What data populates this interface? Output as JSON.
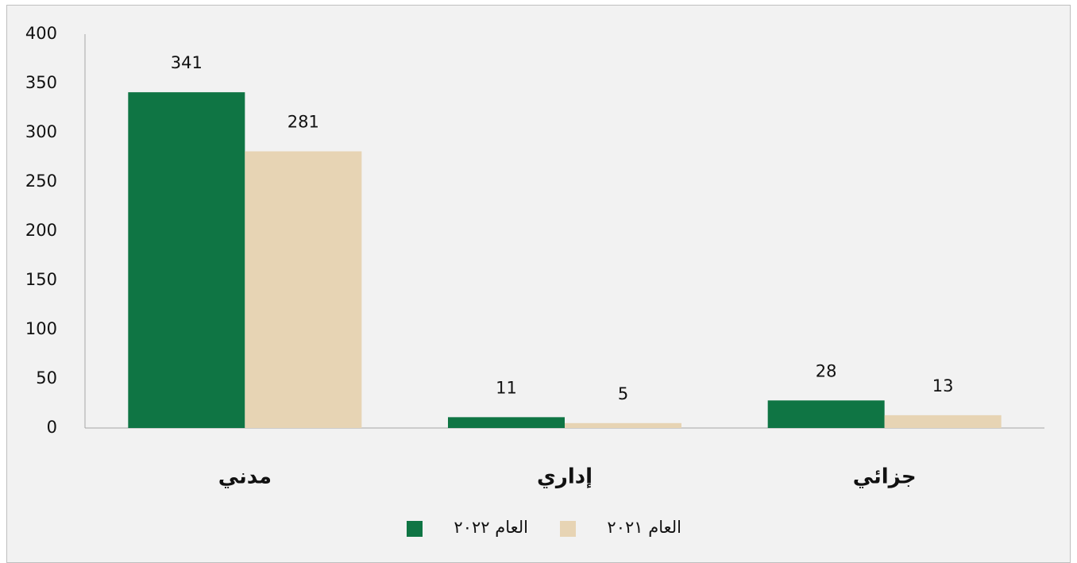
{
  "chart_data": {
    "type": "bar",
    "categories": [
      "مدني",
      "إداري",
      "جزائي"
    ],
    "series": [
      {
        "name": "العام ٢٠٢٢",
        "color": "#0f7544",
        "values": [
          341,
          11,
          28
        ]
      },
      {
        "name": "العام ٢٠٢١",
        "color": "#e7d4b4",
        "values": [
          281,
          5,
          13
        ]
      }
    ],
    "ylim": [
      0,
      400
    ],
    "yticks": [
      0,
      50,
      100,
      150,
      200,
      250,
      300,
      350,
      400
    ],
    "grid": false,
    "legend": "bottom"
  }
}
